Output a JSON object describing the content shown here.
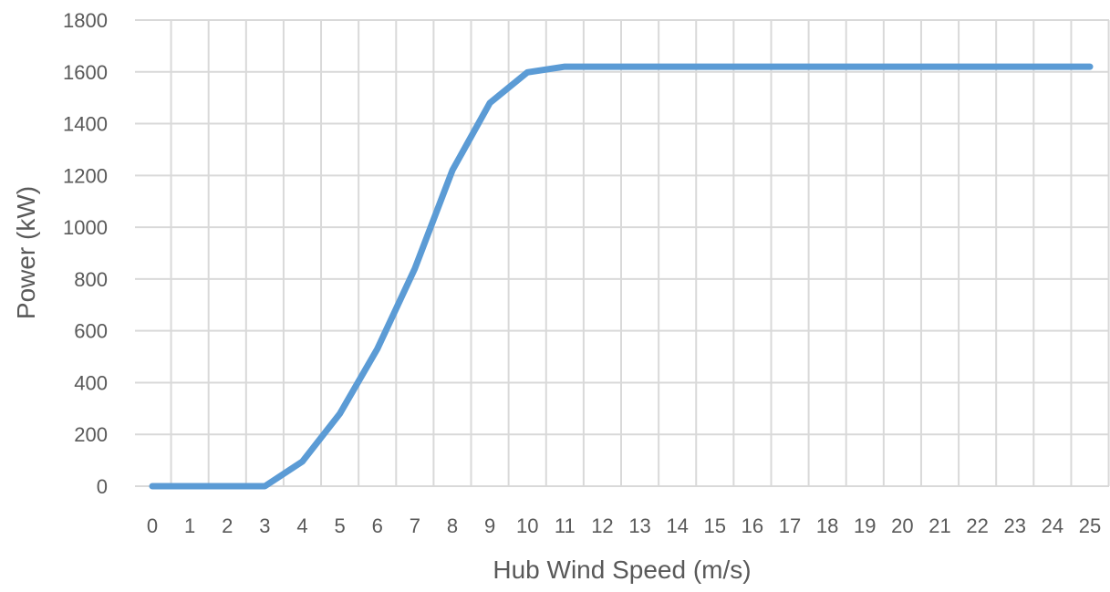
{
  "chart_data": {
    "type": "line",
    "xlabel": "Hub Wind Speed (m/s)",
    "ylabel": "Power (kW)",
    "xlim": [
      0,
      25
    ],
    "ylim": [
      0,
      1800
    ],
    "y_ticks": [
      0,
      200,
      400,
      600,
      800,
      1000,
      1200,
      1400,
      1600,
      1800
    ],
    "x_ticks": [
      0,
      1,
      2,
      3,
      4,
      5,
      6,
      7,
      8,
      9,
      10,
      11,
      12,
      13,
      14,
      15,
      16,
      17,
      18,
      19,
      20,
      21,
      22,
      23,
      24,
      25
    ],
    "grid": true,
    "series": [
      {
        "color": "#5b9bd5",
        "x": [
          0,
          1,
          2,
          3,
          4,
          5,
          6,
          7,
          8,
          9,
          10,
          11,
          12,
          13,
          14,
          15,
          16,
          17,
          18,
          19,
          20,
          21,
          22,
          23,
          24,
          25
        ],
        "values": [
          0,
          0,
          0,
          0,
          95,
          280,
          530,
          840,
          1220,
          1480,
          1598,
          1620,
          1620,
          1620,
          1620,
          1620,
          1620,
          1620,
          1620,
          1620,
          1620,
          1620,
          1620,
          1620,
          1620,
          1620
        ]
      }
    ]
  }
}
